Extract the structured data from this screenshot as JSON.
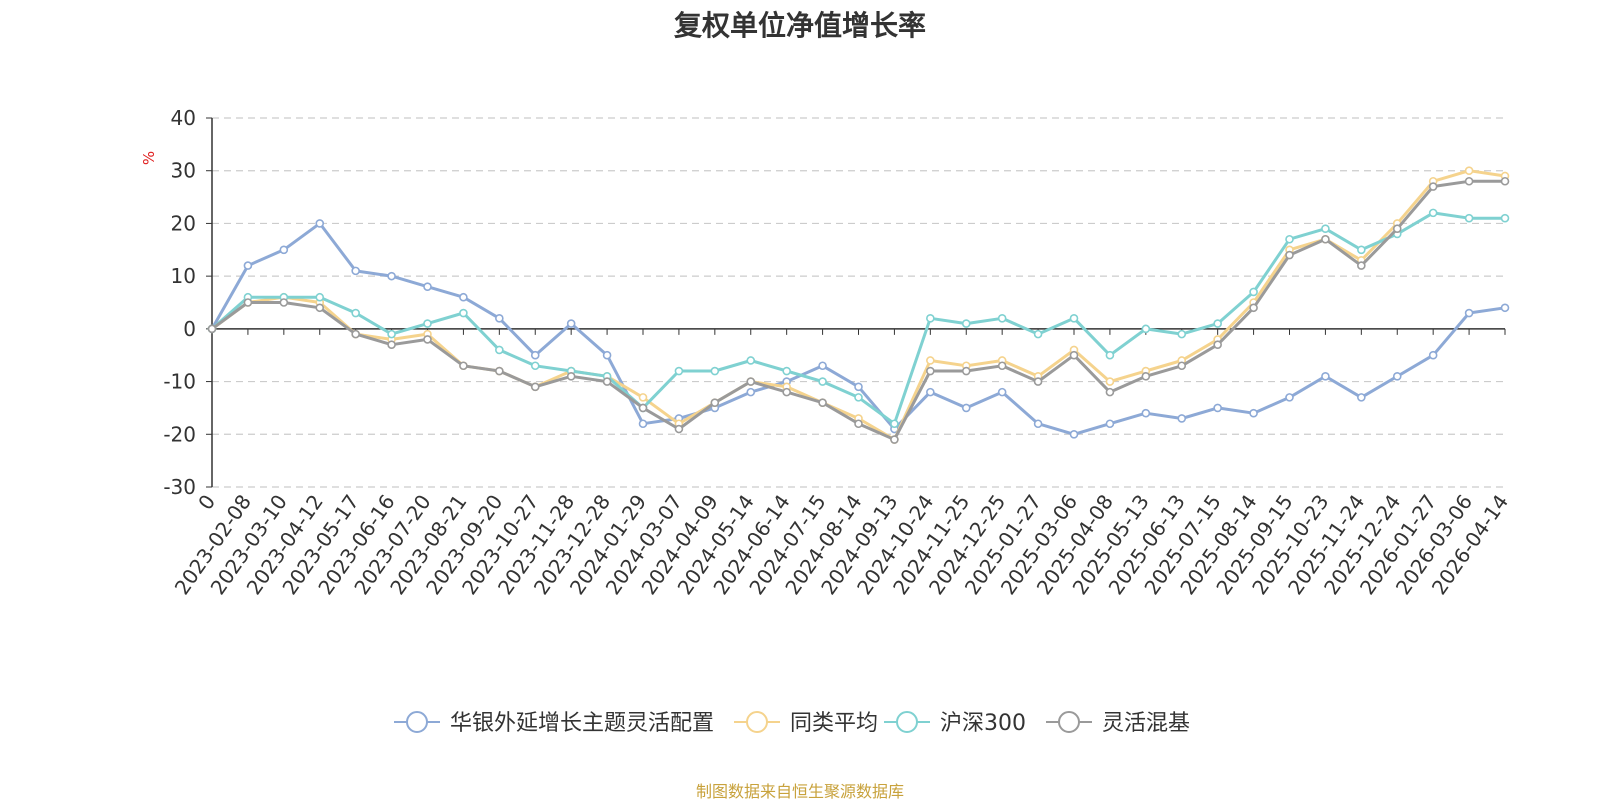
{
  "chart_data": {
    "type": "line",
    "title": "复权单位净值增长率",
    "ylabel": "%",
    "xlabel": "",
    "ylim": [
      -30,
      40
    ],
    "yticks": [
      -30,
      -20,
      -10,
      0,
      10,
      20,
      30,
      40
    ],
    "grid": true,
    "legend_position": "bottom-center",
    "x": [
      "0",
      "2023-02-08",
      "2023-03-10",
      "2023-04-12",
      "2023-05-17",
      "2023-06-16",
      "2023-07-20",
      "2023-08-21",
      "2023-09-20",
      "2023-10-27",
      "2023-11-28",
      "2023-12-28",
      "2024-01-29",
      "2024-03-07",
      "2024-04-09",
      "2024-05-14",
      "2024-06-14",
      "2024-07-15",
      "2024-08-14",
      "2024-09-13",
      "2024-10-24",
      "2024-11-25",
      "2024-12-25",
      "2025-01-27",
      "2025-03-06",
      "2025-04-08",
      "2025-05-13",
      "2025-06-13",
      "2025-07-15",
      "2025-08-14",
      "2025-09-15",
      "2025-10-23",
      "2025-11-24",
      "2025-12-24",
      "2026-01-27",
      "2026-03-06",
      "2026-04-14"
    ],
    "series": [
      {
        "name": "华银外延增长主题灵活配置",
        "color": "#8da9d6",
        "values": [
          0,
          12,
          15,
          20,
          11,
          10,
          8,
          6,
          2,
          -5,
          1,
          -5,
          -18,
          -17,
          -15,
          -12,
          -10,
          -7,
          -11,
          -19,
          -12,
          -15,
          -12,
          -18,
          -20,
          -18,
          -16,
          -17,
          -15,
          -16,
          -13,
          -9,
          -13,
          -9,
          -5,
          3,
          4
        ]
      },
      {
        "name": "同类平均",
        "color": "#f5d38d",
        "values": [
          0,
          5,
          6,
          5,
          -1,
          -2,
          -1,
          -7,
          -8,
          -11,
          -8,
          -9,
          -13,
          -18,
          -14,
          -10,
          -11,
          -14,
          -17,
          -21,
          -6,
          -7,
          -6,
          -9,
          -4,
          -10,
          -8,
          -6,
          -2,
          5,
          15,
          17,
          13,
          20,
          28,
          30,
          29
        ]
      },
      {
        "name": "沪深300",
        "color": "#7fd1d1",
        "values": [
          0,
          6,
          6,
          6,
          3,
          -1,
          1,
          3,
          -4,
          -7,
          -8,
          -9,
          -15,
          -8,
          -8,
          -6,
          -8,
          -10,
          -13,
          -18,
          2,
          1,
          2,
          -1,
          2,
          -5,
          0,
          -1,
          1,
          7,
          17,
          19,
          15,
          18,
          22,
          21,
          21
        ]
      },
      {
        "name": "灵活混基",
        "color": "#9a9a9a",
        "values": [
          0,
          5,
          5,
          4,
          -1,
          -3,
          -2,
          -7,
          -8,
          -11,
          -9,
          -10,
          -15,
          -19,
          -14,
          -10,
          -12,
          -14,
          -18,
          -21,
          -8,
          -8,
          -7,
          -10,
          -5,
          -12,
          -9,
          -7,
          -3,
          4,
          14,
          17,
          12,
          19,
          27,
          28,
          28
        ]
      }
    ]
  },
  "source_note": "制图数据来自恒生聚源数据库"
}
